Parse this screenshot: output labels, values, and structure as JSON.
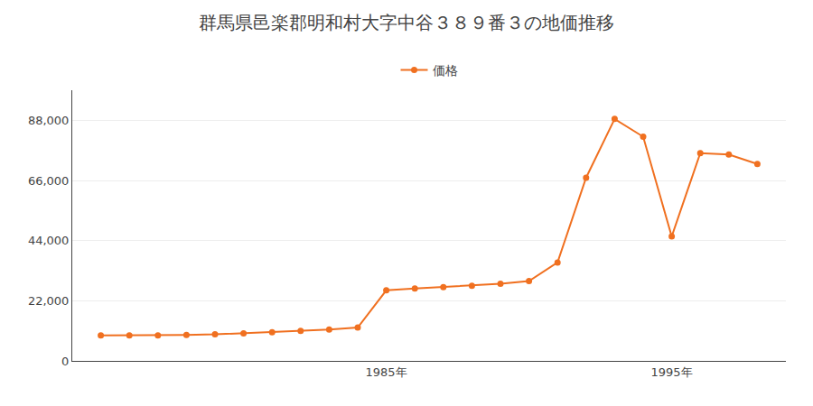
{
  "chart_data": {
    "type": "line",
    "title": "群馬県邑楽郡明和村大字中谷３８９番３の地価推移",
    "x": [
      1975,
      1976,
      1977,
      1978,
      1979,
      1980,
      1981,
      1982,
      1983,
      1984,
      1985,
      1986,
      1987,
      1988,
      1989,
      1990,
      1991,
      1992,
      1993,
      1994,
      1995,
      1996,
      1997,
      1998
    ],
    "series": [
      {
        "name": "価格",
        "color": "#f07020",
        "marker": "circle",
        "values": [
          9300,
          9300,
          9300,
          9500,
          9700,
          10100,
          10500,
          11000,
          11500,
          12200,
          25800,
          26500,
          27000,
          27500,
          28200,
          29200,
          36000,
          67000,
          88500,
          82000,
          45500,
          76000,
          75500,
          72000
        ]
      }
    ],
    "xlim": [
      1974,
      1999
    ],
    "xticks": [
      {
        "value": 1985,
        "label": "1985年"
      },
      {
        "value": 1995,
        "label": "1995年"
      }
    ],
    "ylim": [
      0,
      99000
    ],
    "yticks": [
      0,
      {
        "value": 22000,
        "label": "22,000"
      },
      {
        "value": 44000,
        "label": "44,000"
      },
      {
        "value": 66000,
        "label": "66,000"
      },
      {
        "value": 88000,
        "label": "88,000"
      }
    ],
    "grid": "y",
    "legend": "top"
  }
}
